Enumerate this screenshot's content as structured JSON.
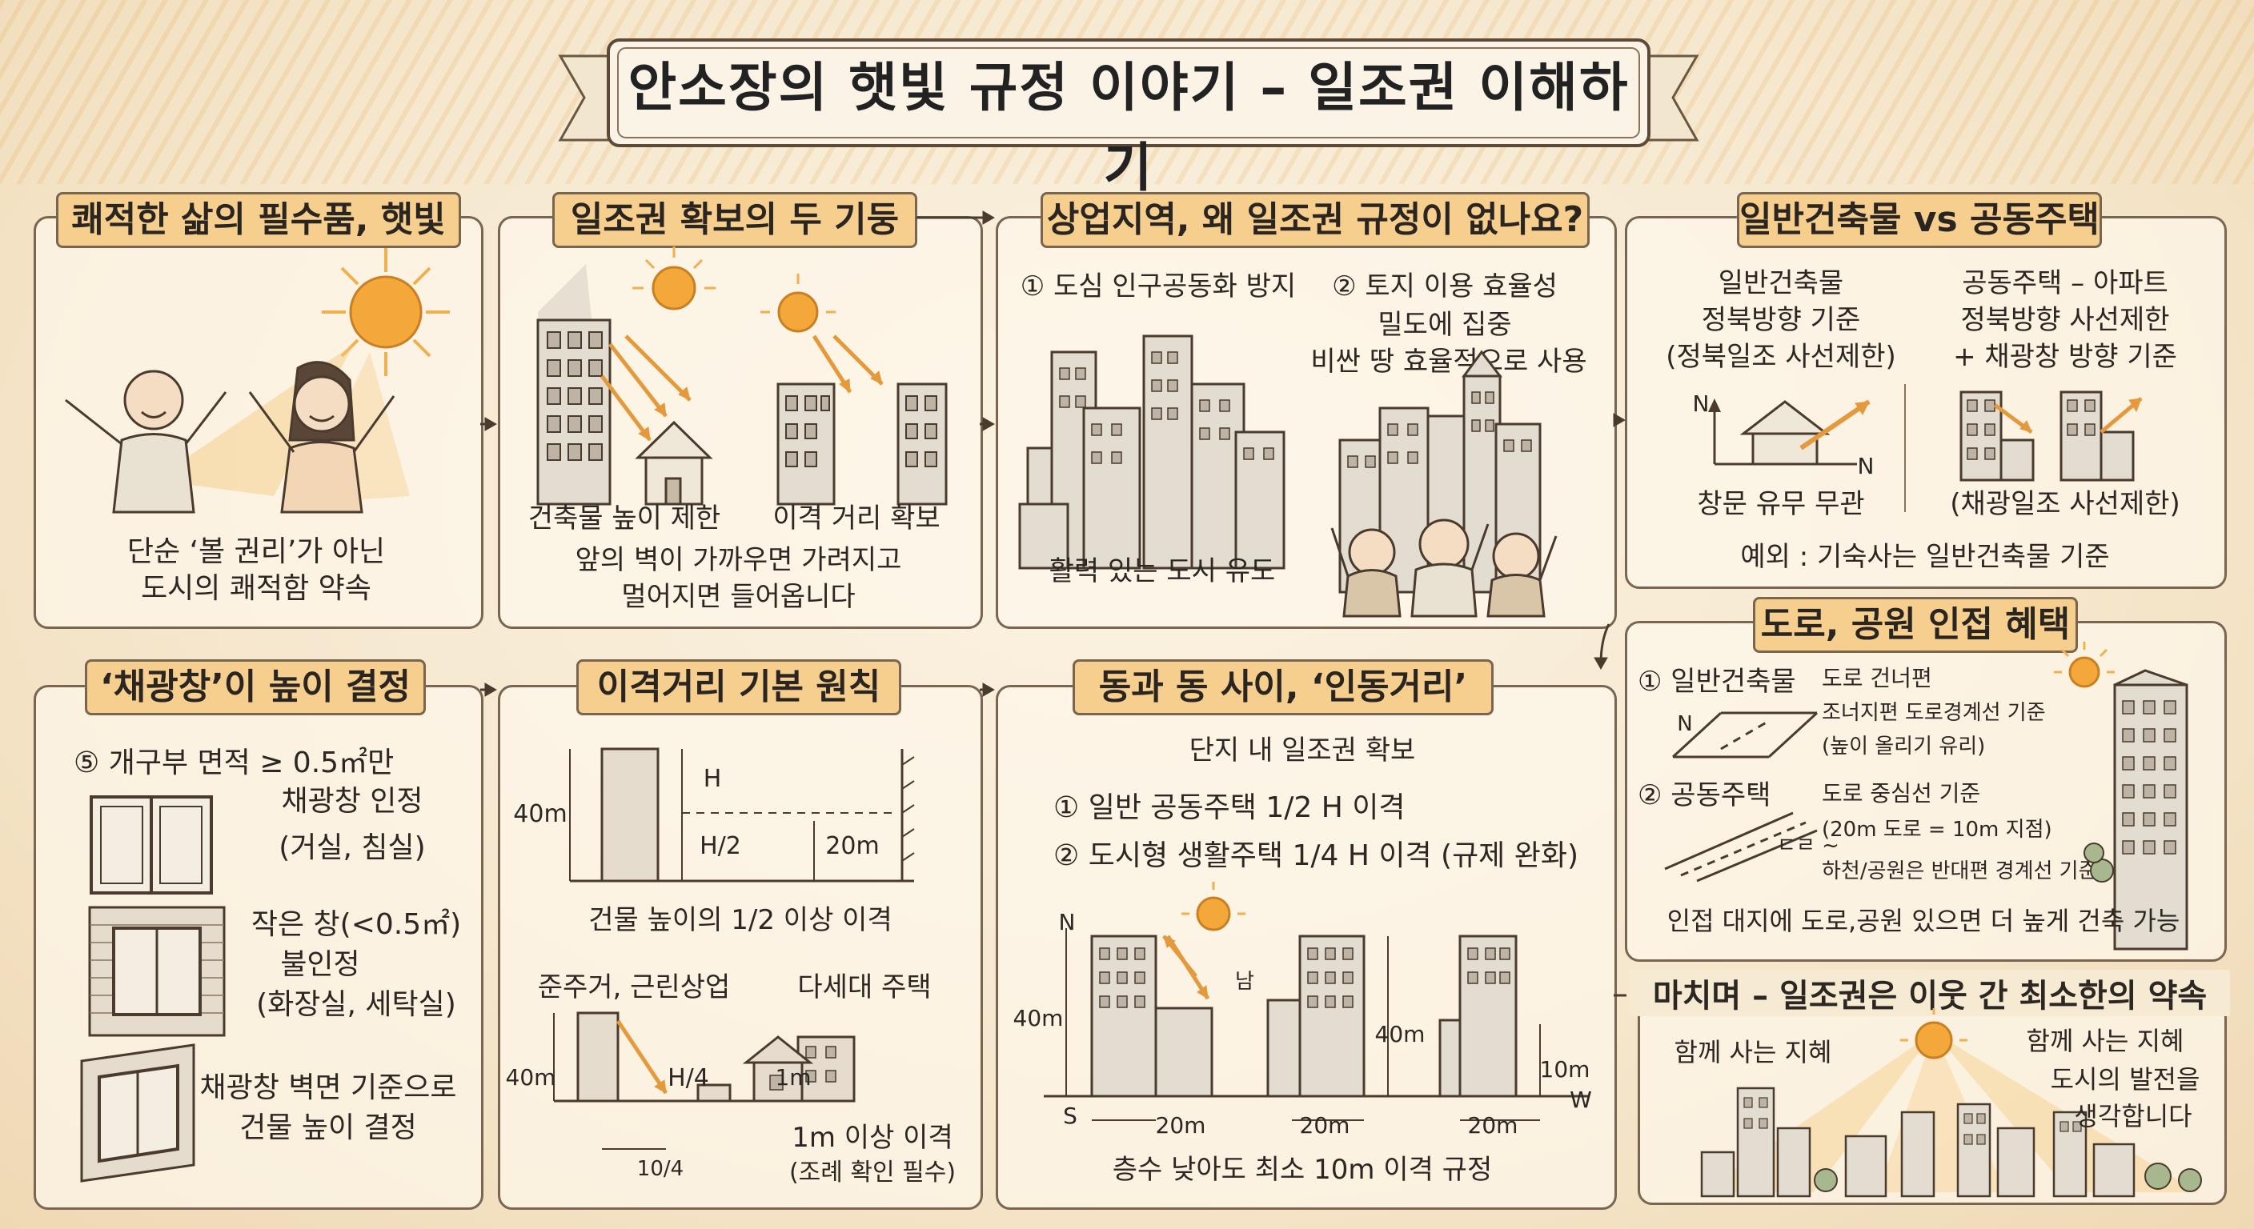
{
  "title": "안소장의 햇빛 규정 이야기 – 일조권 이해하기",
  "colors": {
    "accent": "#f6cf8e",
    "sun": "#f2a53a",
    "arrow": "#e49a3c",
    "ink": "#2a2520"
  },
  "panels": {
    "p1": {
      "title": "쾌적한 삶의 필수품, 햇빛",
      "text1": "단순 ‘볼 권리’가 아닌",
      "text2": "도시의 쾌적함 약속"
    },
    "p2": {
      "title": "일조권 확보의 두 기둥",
      "label_left": "건축물 높이 제한",
      "label_right": "이격 거리 확보",
      "text1": "앞의 벽이 가까우면 가려지고",
      "text2": "멀어지면 들어옵니다"
    },
    "p3": {
      "title": "상업지역, 왜 일조권 규정이 없나요?",
      "point1": "① 도심 인구공동화 방지",
      "point2": "② 토지 이용 효율성",
      "sub1": "밀도에 집중",
      "sub2": "비싼 땅 효율적으로 사용",
      "caption": "활력 있는 도시 유도"
    },
    "p4": {
      "title": "일반건축물 vs 공동주택",
      "left1": "일반건축물",
      "left2": "정북방향 기준",
      "left3": "(정북일조 사선제한)",
      "right1": "공동주택 – 아파트",
      "right2": "정북방향 사선제한",
      "right3": "+ 채광창 방향 기준",
      "n1": "N",
      "n2": "N",
      "left_cap": "창문 유무 무관",
      "right_cap": "(채광일조 사선제한)",
      "note": "예외 : 기숙사는 일반건축물 기준"
    },
    "p5": {
      "title": "도로, 공원 인접 혜택",
      "item1": "① 일반건축물",
      "item1_n": "N",
      "item1_desc1": "도로 건너편",
      "item1_desc2": "조너지편 도로경계선 기준",
      "item1_desc3": "(높이 올리기 유리)",
      "item2": "② 공동주택",
      "item2_desc1": "도로 중심선 기준",
      "item2_desc2": "(20m 도로 = 10m 지점)",
      "item2_desc3": "하천/공원은 반대편 경계선 기준",
      "road_label": "ㄷㄹ ~",
      "caption": "인접 대지에 도로,공원 있으면 더 높게 건축 가능"
    },
    "p6": {
      "title": "‘채광창’이 높이 결정",
      "line1": "⑤ 개구부 면적 ≥ 0.5㎡만",
      "line2": "채광창 인정",
      "line3": "(거실, 침실)",
      "line4": "작은 창(<0.5㎡)",
      "line5": "불인정",
      "line6": "(화장실, 세탁실)",
      "line7": "채광창 벽면 기준으로",
      "line8": "건물 높이 결정"
    },
    "p7": {
      "title": "이격거리 기본 원칙",
      "h40": "40m",
      "hH": "H",
      "hH2": "H/2",
      "d20": "20m",
      "caption1": "건물 높이의 1/2 이상 이격",
      "sub_left": "준주거, 근린상업",
      "sub_right": "다세대 주택",
      "h40b": "40m",
      "hH4": "H/4",
      "d104": "10/4",
      "m1": "1m",
      "caption2": "1m 이상 이격",
      "caption3": "(조례 확인 필수)"
    },
    "p8": {
      "title": "동과 동 사이, ‘인동거리’",
      "sub": "단지 내 일조권 확보",
      "rule1": "① 일반 공동주택     1/2 H 이격",
      "rule2": "② 도시형 생활주택 1/4 H 이격 (규제 완화)",
      "n": "N",
      "s": "S",
      "w": "W",
      "south": "남",
      "h1": "40m",
      "h2": "40m",
      "h3": "10m",
      "d1": "20m",
      "d2": "20m",
      "d3": "20m",
      "caption": "층수 낮아도 최소 10m 이격 규정"
    },
    "p9": {
      "title": "마치며 – 일조권은 이웃 간 최소한의 약속",
      "left": "함께 사는 지혜",
      "right1": "함께 사는 지혜",
      "right2": "도시의 발전을",
      "right3": "생각합니다"
    }
  }
}
